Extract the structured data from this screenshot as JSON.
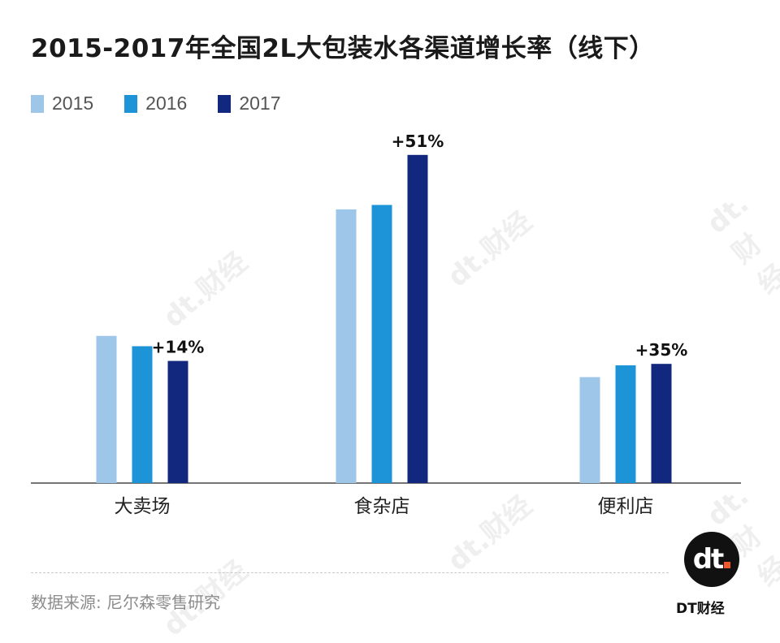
{
  "title": "2015-2017年全国2L大包装水各渠道增长率（线下）",
  "legend": [
    {
      "label": "2015",
      "color": "#9ec6e8"
    },
    {
      "label": "2016",
      "color": "#1e94d8"
    },
    {
      "label": "2017",
      "color": "#11287e"
    }
  ],
  "chart_data": {
    "type": "bar",
    "categories": [
      "大卖场",
      "食杂店",
      "便利店"
    ],
    "series": [
      {
        "name": "2015",
        "values": [
          1.0,
          1.86,
          0.72
        ]
      },
      {
        "name": "2016",
        "values": [
          0.93,
          1.89,
          0.8
        ]
      },
      {
        "name": "2017",
        "values": [
          0.83,
          2.23,
          0.81
        ]
      }
    ],
    "annotations": [
      "+14%",
      "+51%",
      "+35%"
    ],
    "ylim": [
      0,
      2.4
    ],
    "grid": false,
    "legend_position": "top-left"
  },
  "source": "数据来源: 尼尔森零售研究",
  "logo": {
    "mark": "dt",
    "text": "DT财经"
  },
  "watermark": "dt.财经"
}
